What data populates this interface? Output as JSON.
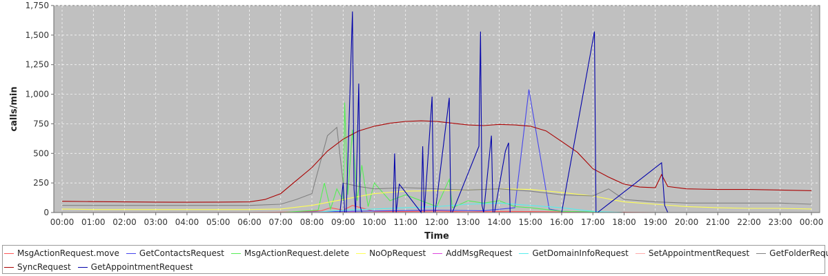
{
  "chart_data": {
    "type": "line",
    "title": "",
    "xlabel": "Time",
    "ylabel": "calls/min",
    "ylim": [
      0,
      1750
    ],
    "yticks": [
      0,
      250,
      500,
      750,
      1000,
      1250,
      1500,
      1750
    ],
    "ytick_labels": [
      "0",
      "250",
      "500",
      "750",
      "1,000",
      "1,250",
      "1,500",
      "1,750"
    ],
    "xlim": [
      0,
      24
    ],
    "xtick_labels": [
      "00:00",
      "01:00",
      "02:00",
      "03:00",
      "04:00",
      "05:00",
      "06:00",
      "07:00",
      "08:00",
      "09:00",
      "10:00",
      "11:00",
      "12:00",
      "13:00",
      "14:00",
      "15:00",
      "16:00",
      "17:00",
      "18:00",
      "19:00",
      "20:00",
      "21:00",
      "22:00",
      "23:00",
      "00:00"
    ],
    "grid": true,
    "legend_position": "bottom",
    "background_color": "#c0c0c0",
    "series": [
      {
        "name": "MsgActionRequest.move",
        "color": "#ff5555",
        "x": [
          0,
          6,
          7.5,
          8.3,
          8.6,
          9.0,
          9.3,
          10.0,
          11.0,
          12.0,
          13.0,
          14.0,
          15.0,
          16.0,
          17.0,
          18.0,
          19.0,
          20.0,
          24.0
        ],
        "y": [
          0,
          0,
          5,
          15,
          40,
          20,
          60,
          10,
          8,
          12,
          5,
          10,
          8,
          5,
          3,
          2,
          0,
          0,
          0
        ]
      },
      {
        "name": "GetContactsRequest",
        "color": "#4444ee",
        "x": [
          0,
          7,
          9,
          12,
          13.5,
          14.5,
          14.95,
          15.3,
          15.6,
          16,
          17,
          18,
          24
        ],
        "y": [
          0,
          0,
          10,
          20,
          15,
          40,
          1040,
          500,
          30,
          10,
          5,
          0,
          0
        ]
      },
      {
        "name": "MsgActionRequest.delete",
        "color": "#55ee55",
        "x": [
          0,
          7,
          8.2,
          8.4,
          8.6,
          8.8,
          9.0,
          9.05,
          9.15,
          9.3,
          9.45,
          9.6,
          9.8,
          10.0,
          10.5,
          11.0,
          12.0,
          12.4,
          12.5,
          13.0,
          13.5,
          14.0,
          14.5,
          15.0,
          16.0,
          17.0,
          18.0,
          24.0
        ],
        "y": [
          0,
          0,
          20,
          250,
          30,
          200,
          100,
          930,
          150,
          700,
          100,
          400,
          50,
          250,
          100,
          150,
          50,
          280,
          40,
          100,
          80,
          100,
          50,
          40,
          10,
          5,
          0,
          0
        ]
      },
      {
        "name": "NoOpRequest",
        "color": "#ffff55",
        "x": [
          0,
          1,
          2,
          3,
          4,
          5,
          6,
          7,
          8,
          9,
          10,
          11,
          12,
          13,
          14,
          15,
          16,
          17,
          18,
          19,
          20,
          21,
          22,
          23,
          24
        ],
        "y": [
          30,
          25,
          25,
          25,
          25,
          25,
          25,
          30,
          60,
          110,
          160,
          180,
          185,
          190,
          200,
          195,
          170,
          140,
          90,
          70,
          50,
          40,
          35,
          35,
          30
        ]
      },
      {
        "name": "AddMsgRequest",
        "color": "#dd44dd",
        "x": [
          0,
          9,
          9.3,
          9.5,
          10,
          24
        ],
        "y": [
          0,
          0,
          5,
          0,
          0,
          0
        ]
      },
      {
        "name": "GetDomainInfoRequest",
        "color": "#55eeee",
        "x": [
          0,
          8,
          9,
          10,
          11,
          12,
          13,
          14,
          15,
          16,
          17,
          18,
          24
        ],
        "y": [
          0,
          0,
          20,
          30,
          40,
          50,
          70,
          80,
          60,
          40,
          10,
          0,
          0
        ]
      },
      {
        "name": "SetAppointmentRequest",
        "color": "#ffaaaa",
        "x": [
          0,
          9,
          12,
          15,
          18,
          24
        ],
        "y": [
          0,
          2,
          3,
          2,
          0,
          0
        ]
      },
      {
        "name": "GetFolderRequest",
        "color": "#808080",
        "x": [
          0,
          6,
          7.0,
          7.5,
          8.0,
          8.5,
          8.8,
          9.0,
          9.5,
          10,
          11,
          12,
          13,
          14,
          15,
          16,
          17,
          17.5,
          18,
          19,
          20,
          21,
          22,
          23,
          24
        ],
        "y": [
          60,
          60,
          70,
          110,
          160,
          650,
          720,
          250,
          220,
          200,
          210,
          200,
          190,
          200,
          180,
          150,
          140,
          200,
          110,
          90,
          80,
          80,
          80,
          80,
          70
        ]
      },
      {
        "name": "SyncRequest",
        "color": "#aa0000",
        "x": [
          0,
          1,
          2,
          3,
          4,
          5,
          6,
          6.5,
          7,
          7.5,
          8,
          8.5,
          9,
          9.5,
          10,
          10.5,
          11,
          11.5,
          12,
          12.5,
          13,
          13.5,
          14,
          14.5,
          15,
          15.5,
          16,
          16.5,
          17,
          17.5,
          18,
          18.5,
          19,
          19.2,
          19.4,
          20,
          21,
          22,
          23,
          24
        ],
        "y": [
          95,
          92,
          90,
          88,
          87,
          88,
          90,
          110,
          160,
          270,
          380,
          520,
          620,
          690,
          730,
          755,
          770,
          775,
          770,
          755,
          740,
          735,
          745,
          740,
          730,
          690,
          600,
          510,
          370,
          300,
          240,
          215,
          210,
          320,
          220,
          200,
          195,
          195,
          190,
          185
        ]
      },
      {
        "name": "GetAppointmentRequest",
        "color": "#0000aa",
        "x": [
          0,
          8.9,
          9.0,
          9.05,
          9.1,
          9.3,
          9.35,
          9.4,
          9.5,
          9.55,
          9.6,
          10.6,
          10.65,
          10.7,
          10.8,
          11.5,
          11.55,
          11.6,
          11.85,
          11.9,
          11.95,
          12.4,
          12.45,
          12.5,
          13.35,
          13.4,
          13.45,
          13.5,
          13.75,
          13.8,
          13.85,
          14.2,
          14.3,
          14.35,
          14.4,
          15.9,
          16.0,
          17.05,
          17.1,
          17.15,
          19.2,
          19.3,
          19.4,
          24
        ],
        "y": [
          0,
          0,
          250,
          0,
          0,
          1700,
          200,
          0,
          1090,
          50,
          0,
          0,
          500,
          0,
          240,
          0,
          560,
          0,
          980,
          0,
          0,
          970,
          0,
          0,
          560,
          1530,
          60,
          0,
          650,
          0,
          0,
          520,
          590,
          0,
          0,
          0,
          0,
          1530,
          0,
          0,
          420,
          60,
          0,
          0
        ]
      }
    ]
  }
}
